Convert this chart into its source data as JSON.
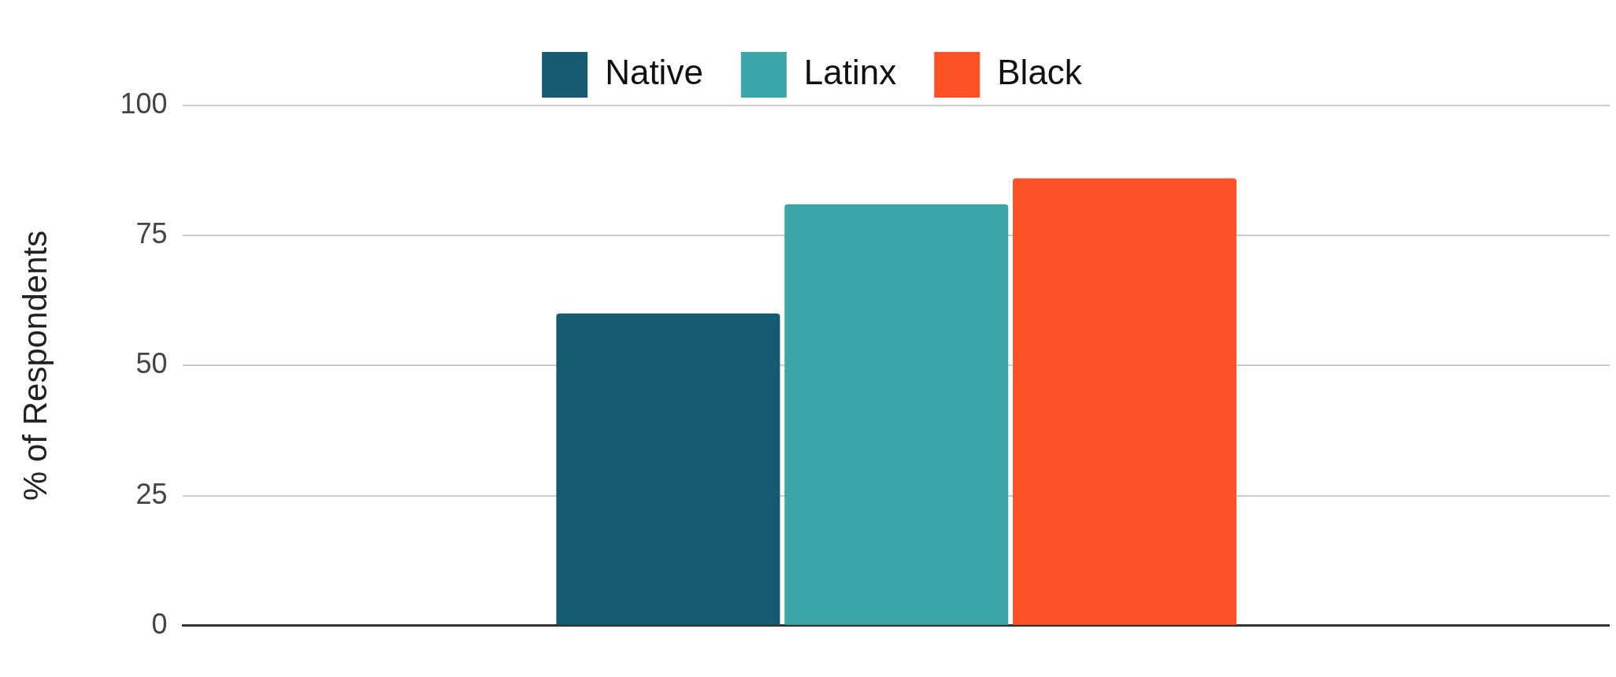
{
  "chart_data": {
    "type": "bar",
    "ylabel": "% of Respondents",
    "categories": [
      null
    ],
    "series": [
      {
        "name": "Native",
        "color": "#165a72",
        "values": [
          60
        ]
      },
      {
        "name": "Latinx",
        "color": "#3aa6a8",
        "values": [
          81
        ]
      },
      {
        "name": "Black",
        "color": "#fd5227",
        "values": [
          86
        ]
      }
    ],
    "ylim": [
      0,
      100
    ],
    "yticks": [
      0,
      25,
      50,
      75,
      100
    ],
    "grid": "y",
    "legend": "top"
  }
}
